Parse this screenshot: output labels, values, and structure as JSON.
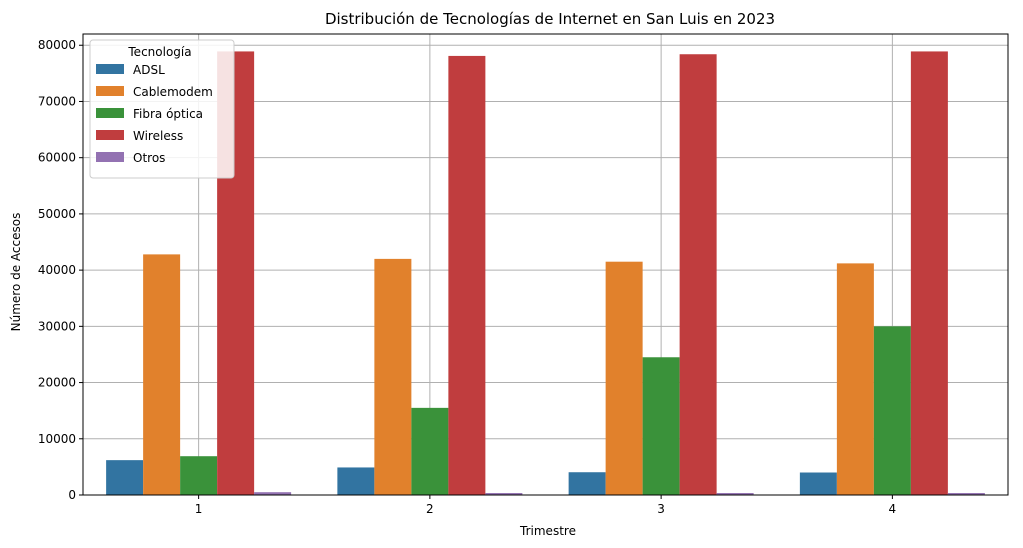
{
  "chart_data": {
    "type": "bar",
    "title": "Distribución de Tecnologías de Internet en San Luis en 2023",
    "xlabel": "Trimestre",
    "ylabel": "Número de Accesos",
    "categories": [
      "1",
      "2",
      "3",
      "4"
    ],
    "ylim": [
      0,
      82000
    ],
    "yticks": [
      0,
      10000,
      20000,
      30000,
      40000,
      50000,
      60000,
      70000,
      80000
    ],
    "grid": true,
    "legend": {
      "title": "Tecnología",
      "placement": "top-left"
    },
    "series": [
      {
        "name": "ADSL",
        "color": "#3274a1",
        "values": [
          6200,
          4900,
          4050,
          4000
        ]
      },
      {
        "name": "Cablemodem",
        "color": "#e1812c",
        "values": [
          42800,
          42000,
          41500,
          41200
        ]
      },
      {
        "name": "Fibra óptica",
        "color": "#3a923a",
        "values": [
          6900,
          15500,
          24500,
          30000
        ]
      },
      {
        "name": "Wireless",
        "color": "#c03d3e",
        "values": [
          78900,
          78100,
          78400,
          78900
        ]
      },
      {
        "name": "Otros",
        "color": "#9372b2",
        "values": [
          500,
          350,
          350,
          350
        ]
      }
    ]
  }
}
